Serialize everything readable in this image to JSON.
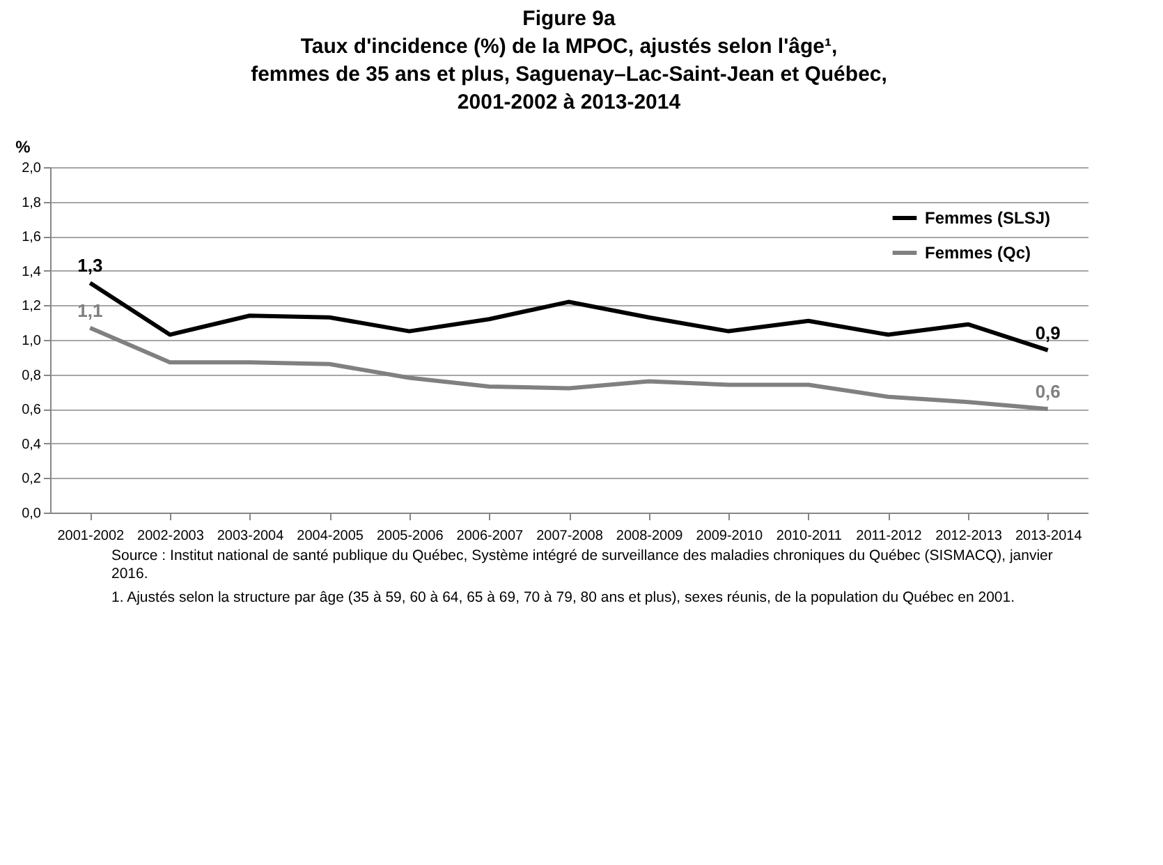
{
  "chart_data": {
    "type": "line",
    "title": [
      "Figure 9a",
      "Taux d'incidence (%) de la MPOC, ajustés selon l'âge¹,",
      "femmes de 35 ans et plus, Saguenay–Lac-Saint-Jean et Québec,",
      "2001-2002 à 2013-2014"
    ],
    "ylabel": "%",
    "categories": [
      "2001-2002",
      "2002-2003",
      "2003-2004",
      "2004-2005",
      "2005-2006",
      "2006-2007",
      "2007-2008",
      "2008-2009",
      "2009-2010",
      "2010-2011",
      "2011-2012",
      "2012-2013",
      "2013-2014"
    ],
    "series": [
      {
        "name": "Femmes (SLSJ)",
        "color": "#000000",
        "values": [
          1.33,
          1.03,
          1.14,
          1.13,
          1.05,
          1.12,
          1.22,
          1.13,
          1.05,
          1.11,
          1.03,
          1.09,
          0.94
        ],
        "value_labels": [
          "1,3",
          null,
          null,
          null,
          null,
          null,
          null,
          null,
          null,
          null,
          null,
          null,
          "0,9"
        ]
      },
      {
        "name": "Femmes (Qc)",
        "color": "#808080",
        "values": [
          1.07,
          0.87,
          0.87,
          0.86,
          0.78,
          0.73,
          0.72,
          0.76,
          0.74,
          0.74,
          0.67,
          0.64,
          0.6
        ],
        "value_labels": [
          "1,1",
          null,
          null,
          null,
          null,
          null,
          null,
          null,
          null,
          null,
          null,
          null,
          "0,6"
        ]
      }
    ],
    "ylim": [
      0,
      2
    ],
    "yticks": [
      {
        "value": 0,
        "label": "0,0"
      },
      {
        "value": 0.2,
        "label": "0,2"
      },
      {
        "value": 0.4,
        "label": "0,4"
      },
      {
        "value": 0.6,
        "label": "0,6"
      },
      {
        "value": 0.8,
        "label": "0,8"
      },
      {
        "value": 1,
        "label": "1,0"
      },
      {
        "value": 1.2,
        "label": "1,2"
      },
      {
        "value": 1.4,
        "label": "1,4"
      },
      {
        "value": 1.6,
        "label": "1,6"
      },
      {
        "value": 1.8,
        "label": "1,8"
      },
      {
        "value": 2,
        "label": "2,0"
      }
    ],
    "grid": "y",
    "legend": "top right",
    "annotations": [
      "Source : Institut national de santé publique du Québec, Système intégré de surveillance des maladies chroniques du Québec (SISMACQ), janvier 2016.",
      "1. Ajustés selon la structure par âge (35 à 59, 60 à 64, 65 à 69, 70 à 79, 80 ans et plus), sexes réunis, de la population du Québec en 2001."
    ]
  }
}
